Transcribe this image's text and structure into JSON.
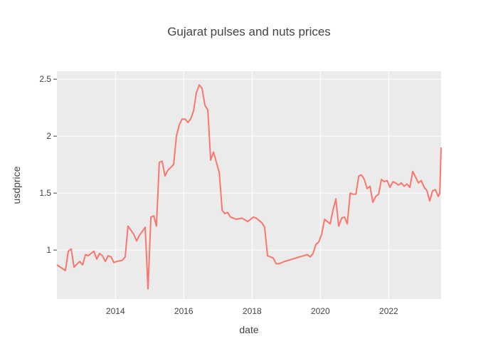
{
  "chart_data": {
    "type": "line",
    "title": "Gujarat pulses and nuts prices",
    "xlabel": "date",
    "ylabel": "usdprice",
    "xlim": [
      "2012-04-15",
      "2023-07-15"
    ],
    "ylim": [
      0.57,
      2.57
    ],
    "x_ticks": [
      {
        "value": "2014-01-01",
        "label": "2014"
      },
      {
        "value": "2016-01-01",
        "label": "2016"
      },
      {
        "value": "2018-01-01",
        "label": "2018"
      },
      {
        "value": "2020-01-01",
        "label": "2020"
      },
      {
        "value": "2022-01-01",
        "label": "2022"
      }
    ],
    "y_ticks": [
      {
        "value": 1,
        "label": "1"
      },
      {
        "value": 1.5,
        "label": "1.5"
      },
      {
        "value": 2,
        "label": "2"
      },
      {
        "value": 2.5,
        "label": "2.5"
      }
    ],
    "grid": true,
    "background_color": "#ebebeb",
    "series": [
      {
        "color": "#f8766d",
        "points": [
          [
            "2012-04-15",
            0.87
          ],
          [
            "2012-07-15",
            0.82
          ],
          [
            "2012-08-15",
            0.99
          ],
          [
            "2012-09-15",
            1.01
          ],
          [
            "2012-10-15",
            0.85
          ],
          [
            "2012-12-15",
            0.9
          ],
          [
            "2013-01-15",
            0.87
          ],
          [
            "2013-02-15",
            0.96
          ],
          [
            "2013-03-15",
            0.95
          ],
          [
            "2013-05-15",
            0.99
          ],
          [
            "2013-06-15",
            0.92
          ],
          [
            "2013-07-15",
            0.97
          ],
          [
            "2013-08-15",
            0.95
          ],
          [
            "2013-09-15",
            0.9
          ],
          [
            "2013-10-15",
            0.95
          ],
          [
            "2013-11-15",
            0.94
          ],
          [
            "2013-12-15",
            0.89
          ],
          [
            "2014-01-15",
            0.9
          ],
          [
            "2014-03-15",
            0.91
          ],
          [
            "2014-04-15",
            0.94
          ],
          [
            "2014-05-15",
            1.21
          ],
          [
            "2014-07-15",
            1.14
          ],
          [
            "2014-08-15",
            1.08
          ],
          [
            "2014-09-15",
            1.13
          ],
          [
            "2014-11-15",
            1.2
          ],
          [
            "2014-12-15",
            0.66
          ],
          [
            "2015-01-15",
            1.29
          ],
          [
            "2015-02-15",
            1.3
          ],
          [
            "2015-03-15",
            1.21
          ],
          [
            "2015-04-15",
            1.77
          ],
          [
            "2015-05-15",
            1.78
          ],
          [
            "2015-06-15",
            1.65
          ],
          [
            "2015-07-15",
            1.7
          ],
          [
            "2015-09-15",
            1.75
          ],
          [
            "2015-10-15",
            2.0
          ],
          [
            "2015-11-15",
            2.1
          ],
          [
            "2015-12-15",
            2.15
          ],
          [
            "2016-01-15",
            2.15
          ],
          [
            "2016-02-15",
            2.12
          ],
          [
            "2016-03-15",
            2.15
          ],
          [
            "2016-04-15",
            2.22
          ],
          [
            "2016-05-15",
            2.38
          ],
          [
            "2016-06-15",
            2.45
          ],
          [
            "2016-07-15",
            2.42
          ],
          [
            "2016-08-15",
            2.27
          ],
          [
            "2016-09-15",
            2.23
          ],
          [
            "2016-10-15",
            1.79
          ],
          [
            "2016-11-15",
            1.86
          ],
          [
            "2017-01-15",
            1.68
          ],
          [
            "2017-02-15",
            1.35
          ],
          [
            "2017-03-15",
            1.32
          ],
          [
            "2017-04-15",
            1.33
          ],
          [
            "2017-05-15",
            1.29
          ],
          [
            "2017-07-15",
            1.27
          ],
          [
            "2017-09-15",
            1.28
          ],
          [
            "2017-11-15",
            1.25
          ],
          [
            "2018-01-15",
            1.29
          ],
          [
            "2018-02-15",
            1.28
          ],
          [
            "2018-04-15",
            1.24
          ],
          [
            "2018-05-15",
            1.2
          ],
          [
            "2018-06-15",
            0.95
          ],
          [
            "2018-08-15",
            0.93
          ],
          [
            "2018-09-15",
            0.88
          ],
          [
            "2018-10-15",
            0.88
          ],
          [
            "2018-12-15",
            0.9
          ],
          [
            "2019-08-15",
            0.96
          ],
          [
            "2019-09-15",
            0.94
          ],
          [
            "2019-10-15",
            0.97
          ],
          [
            "2019-11-15",
            1.05
          ],
          [
            "2019-12-15",
            1.07
          ],
          [
            "2020-01-15",
            1.14
          ],
          [
            "2020-02-15",
            1.27
          ],
          [
            "2020-04-15",
            1.23
          ],
          [
            "2020-05-15",
            1.35
          ],
          [
            "2020-06-15",
            1.45
          ],
          [
            "2020-07-15",
            1.21
          ],
          [
            "2020-08-15",
            1.28
          ],
          [
            "2020-09-15",
            1.29
          ],
          [
            "2020-10-15",
            1.23
          ],
          [
            "2020-11-15",
            1.5
          ],
          [
            "2020-12-15",
            1.49
          ],
          [
            "2021-01-15",
            1.49
          ],
          [
            "2021-02-15",
            1.65
          ],
          [
            "2021-03-15",
            1.66
          ],
          [
            "2021-04-15",
            1.62
          ],
          [
            "2021-05-15",
            1.54
          ],
          [
            "2021-06-15",
            1.56
          ],
          [
            "2021-07-15",
            1.42
          ],
          [
            "2021-08-15",
            1.47
          ],
          [
            "2021-09-15",
            1.49
          ],
          [
            "2021-10-15",
            1.62
          ],
          [
            "2021-11-15",
            1.6
          ],
          [
            "2021-12-15",
            1.61
          ],
          [
            "2022-01-15",
            1.55
          ],
          [
            "2022-02-15",
            1.6
          ],
          [
            "2022-03-15",
            1.59
          ],
          [
            "2022-04-15",
            1.57
          ],
          [
            "2022-05-15",
            1.59
          ],
          [
            "2022-06-15",
            1.56
          ],
          [
            "2022-07-15",
            1.58
          ],
          [
            "2022-08-15",
            1.55
          ],
          [
            "2022-09-15",
            1.69
          ],
          [
            "2022-11-15",
            1.59
          ],
          [
            "2022-12-15",
            1.61
          ],
          [
            "2023-01-15",
            1.55
          ],
          [
            "2023-02-15",
            1.52
          ],
          [
            "2023-03-15",
            1.43
          ],
          [
            "2023-04-15",
            1.52
          ],
          [
            "2023-05-15",
            1.53
          ],
          [
            "2023-06-15",
            1.47
          ],
          [
            "2023-07-01",
            1.5
          ],
          [
            "2023-07-15",
            1.9
          ]
        ]
      }
    ]
  }
}
